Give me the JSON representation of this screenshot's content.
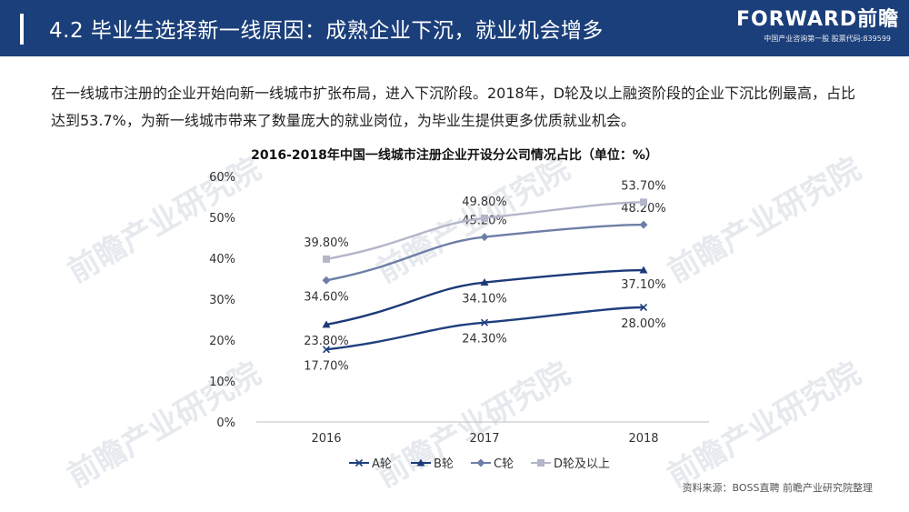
{
  "header": {
    "title": "4.2 毕业生选择新一线原因：成熟企业下沉，就业机会增多",
    "logo_name": "FORWARD前瞻",
    "logo_sub": "中国产业咨询第一股  股票代码:839599"
  },
  "intro_text": "在一线城市注册的企业开始向新一线城市扩张布局，进入下沉阶段。2018年，D轮及以上融资阶段的企业下沉比例最高，占比达到53.7%，为新一线城市带来了数量庞大的就业岗位，为毕业生提供更多优质就业机会。",
  "watermark_text": "前瞻产业研究院",
  "source_text": "资料来源：BOSS直聘 前瞻产业研究院整理",
  "chart_data": {
    "type": "line",
    "title": "2016-2018年中国一线城市注册企业开设分公司情况占比（单位：%）",
    "categories": [
      "2016",
      "2017",
      "2018"
    ],
    "y_ticks": [
      "0%",
      "10%",
      "20%",
      "30%",
      "40%",
      "50%",
      "60%"
    ],
    "ylim": [
      0,
      60
    ],
    "legend_position": "bottom",
    "grid": false,
    "series": [
      {
        "name": "A轮",
        "values": [
          17.7,
          24.3,
          28.0
        ],
        "labels": [
          "17.70%",
          "24.30%",
          "28.00%"
        ],
        "color": "#1f3f7e",
        "marker": "x"
      },
      {
        "name": "B轮",
        "values": [
          23.8,
          34.1,
          37.1
        ],
        "labels": [
          "23.80%",
          "34.10%",
          "37.10%"
        ],
        "color": "#1c3a78",
        "marker": "triangle"
      },
      {
        "name": "C轮",
        "values": [
          34.6,
          45.2,
          48.2
        ],
        "labels": [
          "34.60%",
          "45.20%",
          "48.20%"
        ],
        "color": "#6d7fa6",
        "marker": "diamond"
      },
      {
        "name": "D轮及以上",
        "values": [
          39.8,
          49.8,
          53.7
        ],
        "labels": [
          "39.80%",
          "49.80%",
          "53.70%"
        ],
        "color": "#b3b6c9",
        "marker": "square"
      }
    ]
  }
}
